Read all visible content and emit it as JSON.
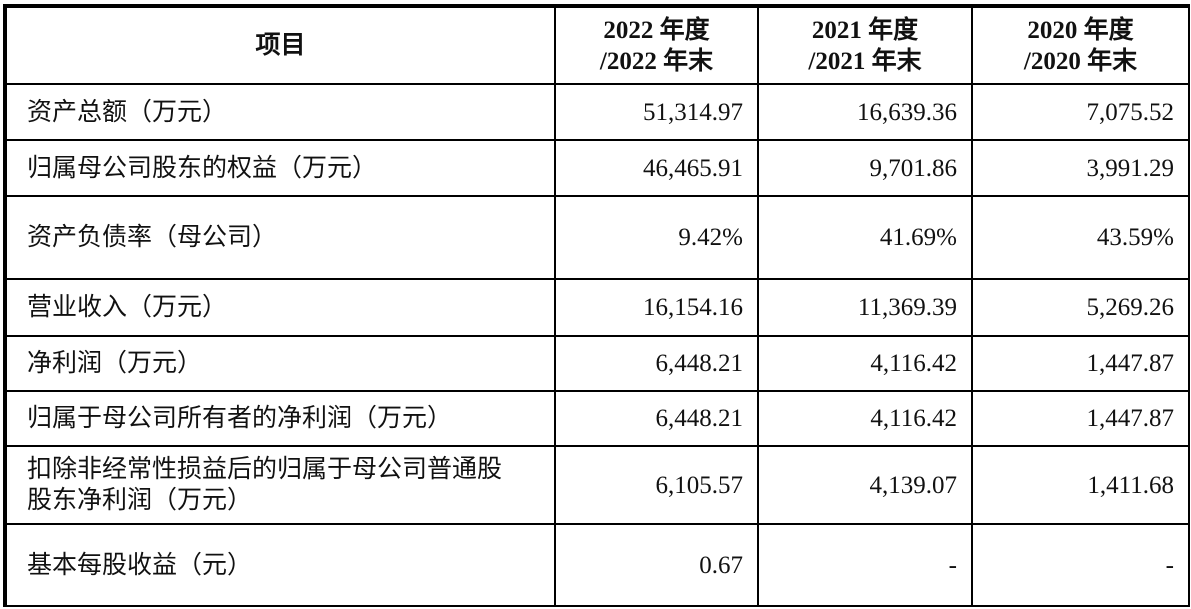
{
  "table": {
    "headers": [
      "项目",
      "2022 年度\n/2022 年末",
      "2021 年度\n/2021 年末",
      "2020 年度\n/2020 年末"
    ],
    "header_lines": [
      [
        "项目"
      ],
      [
        "2022 年度",
        "/2022 年末"
      ],
      [
        "2021 年度",
        "/2021 年末"
      ],
      [
        "2020 年度",
        "/2020 年末"
      ]
    ],
    "rows": [
      {
        "label": "资产总额（万元）",
        "values": [
          "51,314.97",
          "16,639.36",
          "7,075.52"
        ]
      },
      {
        "label": "归属母公司股东的权益（万元）",
        "values": [
          "46,465.91",
          "9,701.86",
          "3,991.29"
        ]
      },
      {
        "label": "资产负债率（母公司）",
        "values": [
          "9.42%",
          "41.69%",
          "43.59%"
        ]
      },
      {
        "label": "营业收入（万元）",
        "values": [
          "16,154.16",
          "11,369.39",
          "5,269.26"
        ]
      },
      {
        "label": "净利润（万元）",
        "values": [
          "6,448.21",
          "4,116.42",
          "1,447.87"
        ]
      },
      {
        "label": "归属于母公司所有者的净利润（万元）",
        "values": [
          "6,448.21",
          "4,116.42",
          "1,447.87"
        ]
      },
      {
        "label": "扣除非经常性损益后的归属于母公司普通股股东净利润（万元）",
        "values": [
          "6,105.57",
          "4,139.07",
          "1,411.68"
        ]
      },
      {
        "label": "基本每股收益（元）",
        "values": [
          "0.67",
          "-",
          "-"
        ]
      }
    ]
  }
}
